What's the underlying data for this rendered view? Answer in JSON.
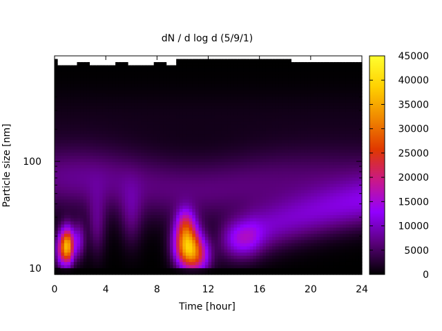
{
  "chart_data": {
    "type": "heatmap",
    "title": "dN / d log d (5/9/1)",
    "xlabel": "Time [hour]",
    "ylabel": "Particle size [nm]",
    "x_range": [
      0,
      24
    ],
    "x_ticks": [
      0,
      4,
      8,
      12,
      16,
      20,
      24
    ],
    "y_scale": "log",
    "y_ticks": [
      10,
      100
    ],
    "colorbar": {
      "range": [
        0,
        45000
      ],
      "ticks": [
        0,
        5000,
        10000,
        15000,
        20000,
        25000,
        30000,
        35000,
        40000,
        45000
      ],
      "colormap": [
        "#000000",
        "#5a007a",
        "#9200ff",
        "#c9188a",
        "#e03800",
        "#f08800",
        "#ffd000",
        "#ffff30"
      ]
    },
    "features": [
      {
        "time_hour": 1.0,
        "size_nm": 16,
        "peak_value": 42000
      },
      {
        "time_hour": 10.5,
        "size_nm": 15,
        "peak_value": 38000
      },
      {
        "time_hour": 14.5,
        "size_nm": 19,
        "peak_value": 17000
      }
    ],
    "notes_background": "Broad mode ~60-100 nm around 5000-12000; near-zero above ~350 nm; white (no data) region at top."
  }
}
